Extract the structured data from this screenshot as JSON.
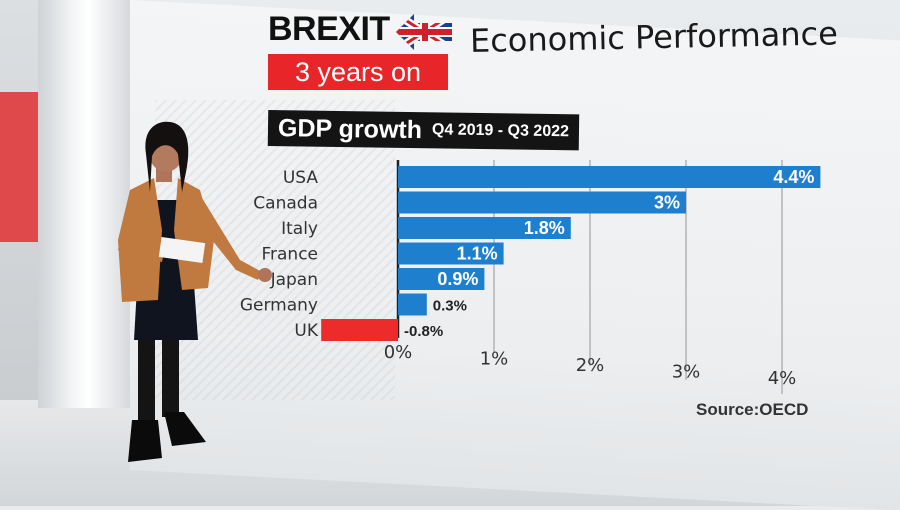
{
  "header": {
    "brand": "BREXIT",
    "subtitle": "3 years on",
    "heading": "Economic Performance"
  },
  "chart_data": {
    "type": "bar",
    "orientation": "horizontal",
    "title": "GDP growth",
    "subtitle": "Q4 2019 - Q3 2022",
    "categories": [
      "USA",
      "Canada",
      "Italy",
      "France",
      "Japan",
      "Germany",
      "UK"
    ],
    "values": [
      4.4,
      3.0,
      1.8,
      1.1,
      0.9,
      0.3,
      -0.8
    ],
    "value_labels": [
      "4.4%",
      "3%",
      "1.8%",
      "1.1%",
      "0.9%",
      "0.3%",
      "-0.8%"
    ],
    "x_ticks": [
      {
        "value": 0,
        "label": "0%"
      },
      {
        "value": 1,
        "label": "1%"
      },
      {
        "value": 2,
        "label": "2%"
      },
      {
        "value": 3,
        "label": "3%"
      },
      {
        "value": 4,
        "label": "4%"
      }
    ],
    "xlim": [
      -0.8,
      4.4
    ],
    "grid": true,
    "source": "Source:OECD",
    "colors": {
      "positive": "#1f7fcf",
      "negative": "#ee2b2b"
    }
  }
}
